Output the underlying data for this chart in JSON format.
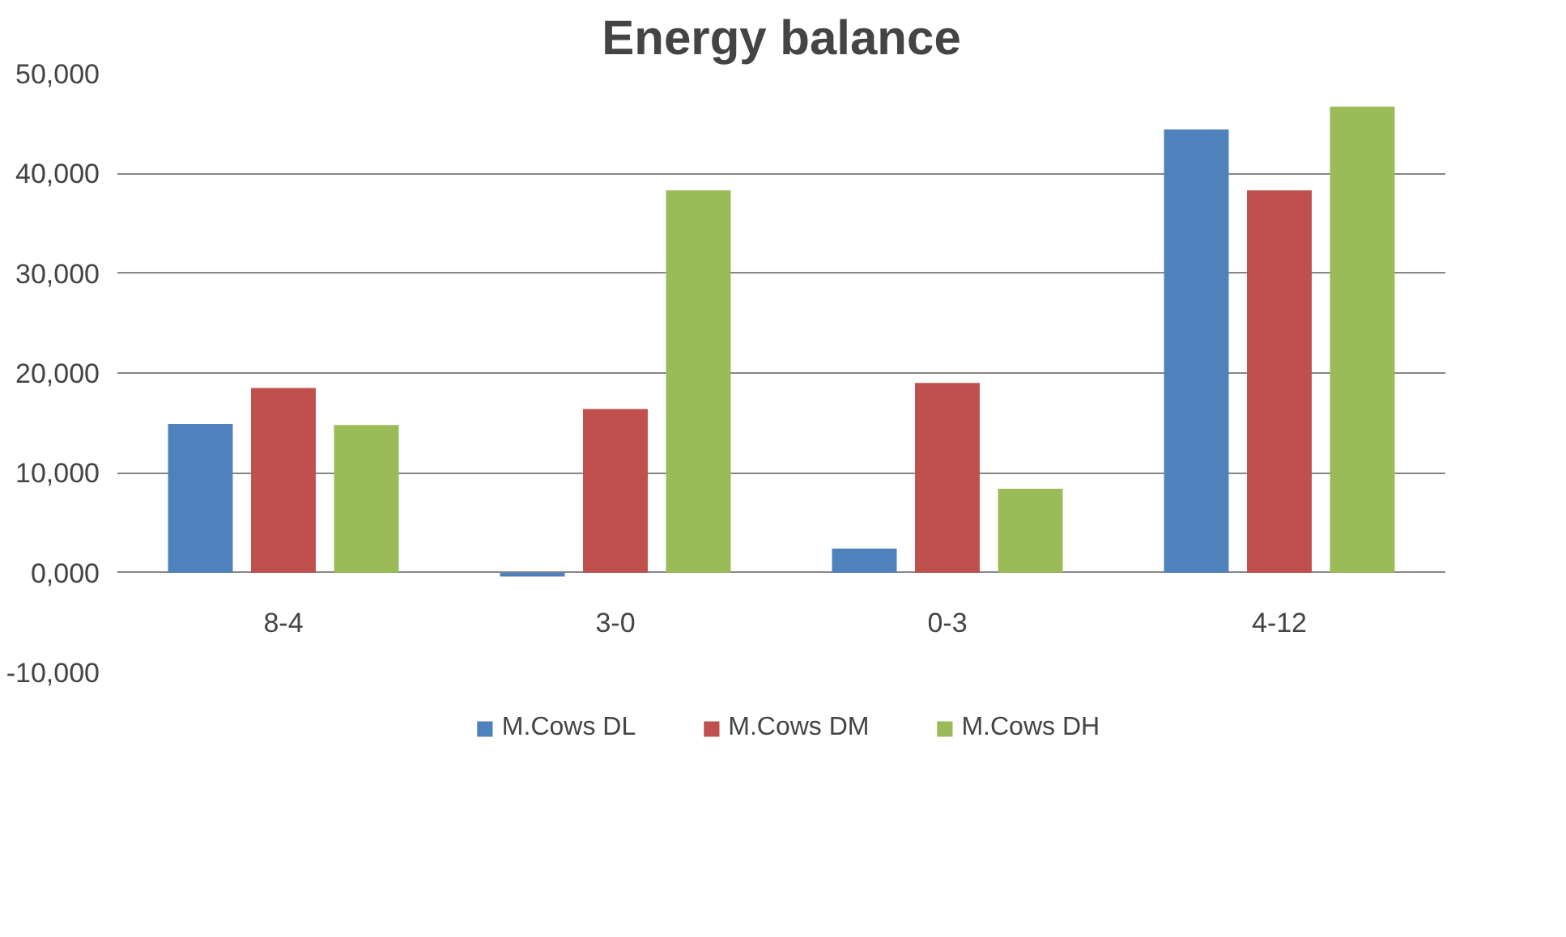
{
  "chart_data": {
    "type": "bar",
    "title": "Energy balance",
    "categories": [
      "8-4",
      "3-0",
      "0-3",
      "4-12"
    ],
    "series": [
      {
        "name": "M.Cows DL",
        "color": "#4f81bd",
        "values": [
          14900,
          -400,
          2400,
          44400
        ]
      },
      {
        "name": "M.Cows DM",
        "color": "#c0504d",
        "values": [
          18500,
          16400,
          19000,
          38300
        ]
      },
      {
        "name": "M.Cows DH",
        "color": "#9bbb59",
        "values": [
          14800,
          38300,
          8400,
          46700
        ]
      }
    ],
    "ylim": [
      -10000,
      50000
    ],
    "yticks": [
      {
        "value": -10000,
        "label": "-10,000"
      },
      {
        "value": 0,
        "label": "0,000"
      },
      {
        "value": 10000,
        "label": "10,000"
      },
      {
        "value": 20000,
        "label": "20,000"
      },
      {
        "value": 30000,
        "label": "30,000"
      },
      {
        "value": 40000,
        "label": "40,000"
      },
      {
        "value": 50000,
        "label": "50,000"
      }
    ],
    "grid": "y",
    "legend": "bottom"
  }
}
